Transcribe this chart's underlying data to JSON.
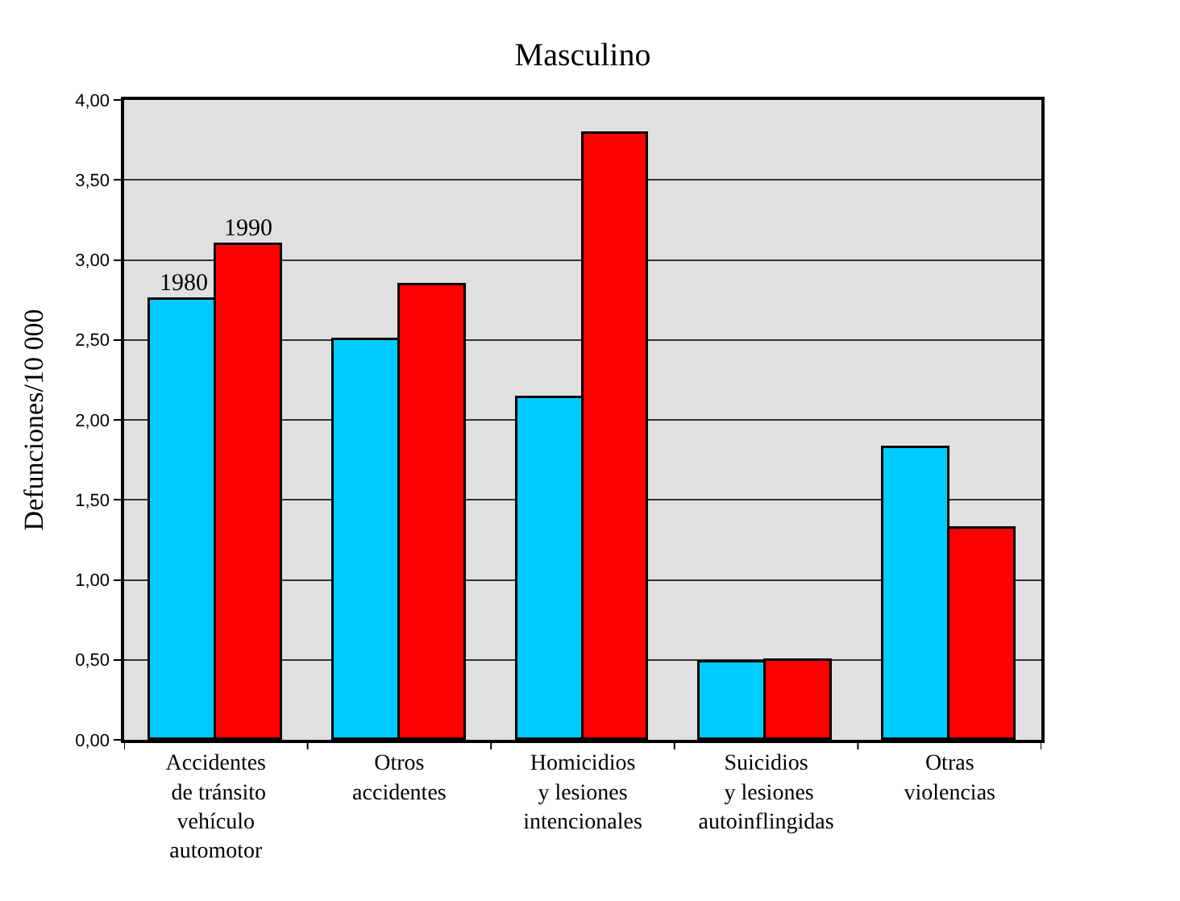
{
  "chart_data": {
    "type": "bar",
    "title": "Masculino",
    "ylabel": "Defunciones/10 000",
    "categories": [
      "Accidentes\n de tránsito\nvehículo\nautomotor",
      "Otros\naccidentes",
      "Homicidios\ny lesiones\nintencionales",
      "Suicidios\n y lesiones\nautoinflingidas",
      "Otras\nviolencias"
    ],
    "series": [
      {
        "name": "1980",
        "color": "#00ccff",
        "values": [
          2.75,
          2.5,
          2.14,
          0.48,
          1.82
        ]
      },
      {
        "name": "1990",
        "color": "#ff0000",
        "values": [
          3.09,
          2.84,
          3.79,
          0.49,
          1.32
        ]
      }
    ],
    "ylim": [
      0,
      4
    ],
    "yticks": [
      {
        "value": 0,
        "label": "0,00"
      },
      {
        "value": 0.5,
        "label": "0,50"
      },
      {
        "value": 1,
        "label": "1,00"
      },
      {
        "value": 1.5,
        "label": "1,50"
      },
      {
        "value": 2,
        "label": "2,00"
      },
      {
        "value": 2.5,
        "label": "2,50"
      },
      {
        "value": 3,
        "label": "3,00"
      },
      {
        "value": 3.5,
        "label": "3,50"
      },
      {
        "value": 4,
        "label": "4,00"
      }
    ],
    "grid": "y",
    "legend": false
  }
}
